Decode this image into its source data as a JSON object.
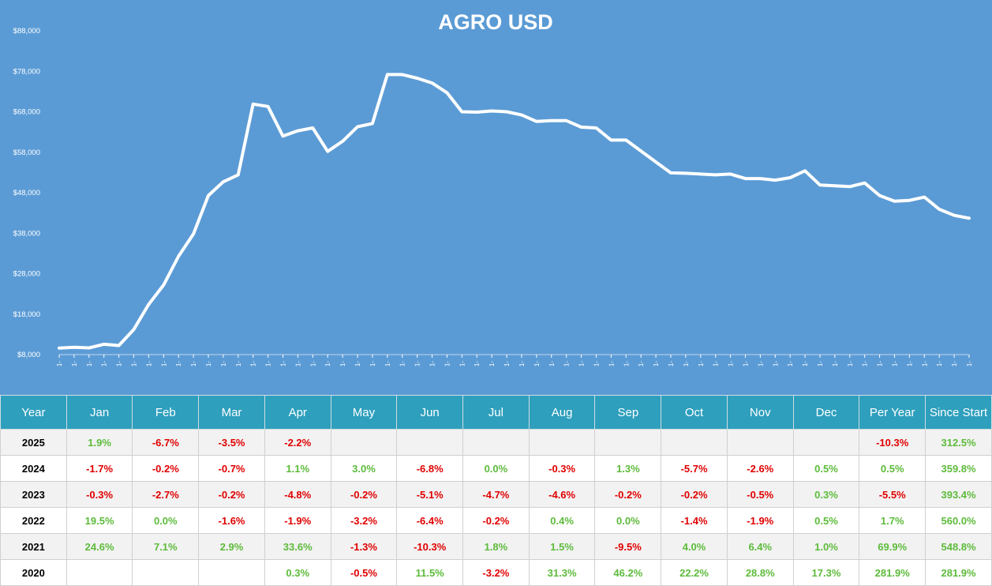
{
  "chart_data": {
    "type": "line",
    "title": "AGRO USD",
    "ylim": [
      8000,
      88000
    ],
    "y_ticks": [
      8000,
      18000,
      28000,
      38000,
      48000,
      58000,
      68000,
      78000,
      88000
    ],
    "y_tick_labels": [
      "$8,000",
      "$18,000",
      "$28,000",
      "$38,000",
      "$48,000",
      "$58,000",
      "$68,000",
      "$78,000",
      "$88,000"
    ],
    "x_tick_label": "1-",
    "values": [
      9600,
      9800,
      9650,
      10550,
      10250,
      14200,
      20400,
      25200,
      32300,
      37800,
      47300,
      50700,
      52400,
      69900,
      69300,
      62000,
      63300,
      64000,
      58200,
      60700,
      64300,
      65100,
      77200,
      77200,
      76300,
      75100,
      72700,
      68000,
      67900,
      68200,
      68000,
      67200,
      65600,
      65800,
      65800,
      64200,
      64000,
      61000,
      61000,
      58300,
      55600,
      52900,
      52800,
      52600,
      52400,
      52600,
      51500,
      51500,
      51100,
      51700,
      53400,
      49900,
      49700,
      49500,
      50400,
      47300,
      45900,
      46100,
      46900,
      43900,
      42400,
      41700
    ],
    "line_color": "#ffffff",
    "background": "#5b9bd5",
    "grid": false
  },
  "table": {
    "headers": [
      "Year",
      "Jan",
      "Feb",
      "Mar",
      "Apr",
      "May",
      "Jun",
      "Jul",
      "Aug",
      "Sep",
      "Oct",
      "Nov",
      "Dec",
      "Per Year",
      "Since Start"
    ],
    "rows": [
      [
        "2025",
        "1.9%",
        "-6.7%",
        "-3.5%",
        "-2.2%",
        "",
        "",
        "",
        "",
        "",
        "",
        "",
        "",
        "-10.3%",
        "312.5%"
      ],
      [
        "2024",
        "-1.7%",
        "-0.2%",
        "-0.7%",
        "1.1%",
        "3.0%",
        "-6.8%",
        "0.0%",
        "-0.3%",
        "1.3%",
        "-5.7%",
        "-2.6%",
        "0.5%",
        "0.5%",
        "359.8%"
      ],
      [
        "2023",
        "-0.3%",
        "-2.7%",
        "-0.2%",
        "-4.8%",
        "-0.2%",
        "-5.1%",
        "-4.7%",
        "-4.6%",
        "-0.2%",
        "-0.2%",
        "-0.5%",
        "0.3%",
        "-5.5%",
        "393.4%"
      ],
      [
        "2022",
        "19.5%",
        "0.0%",
        "-1.6%",
        "-1.9%",
        "-3.2%",
        "-6.4%",
        "-0.2%",
        "0.4%",
        "0.0%",
        "-1.4%",
        "-1.9%",
        "0.5%",
        "1.7%",
        "560.0%"
      ],
      [
        "2021",
        "24.6%",
        "7.1%",
        "2.9%",
        "33.6%",
        "-1.3%",
        "-10.3%",
        "1.8%",
        "1.5%",
        "-9.5%",
        "4.0%",
        "6.4%",
        "1.0%",
        "69.9%",
        "548.8%"
      ],
      [
        "2020",
        "",
        "",
        "",
        "0.3%",
        "-0.5%",
        "11.5%",
        "-3.2%",
        "31.3%",
        "46.2%",
        "22.2%",
        "28.8%",
        "17.3%",
        "281.9%",
        "281.9%"
      ]
    ],
    "colors": {
      "header_bg": "#2e9fbd",
      "positive": "#5dbb3b",
      "negative": "#e00000"
    }
  }
}
